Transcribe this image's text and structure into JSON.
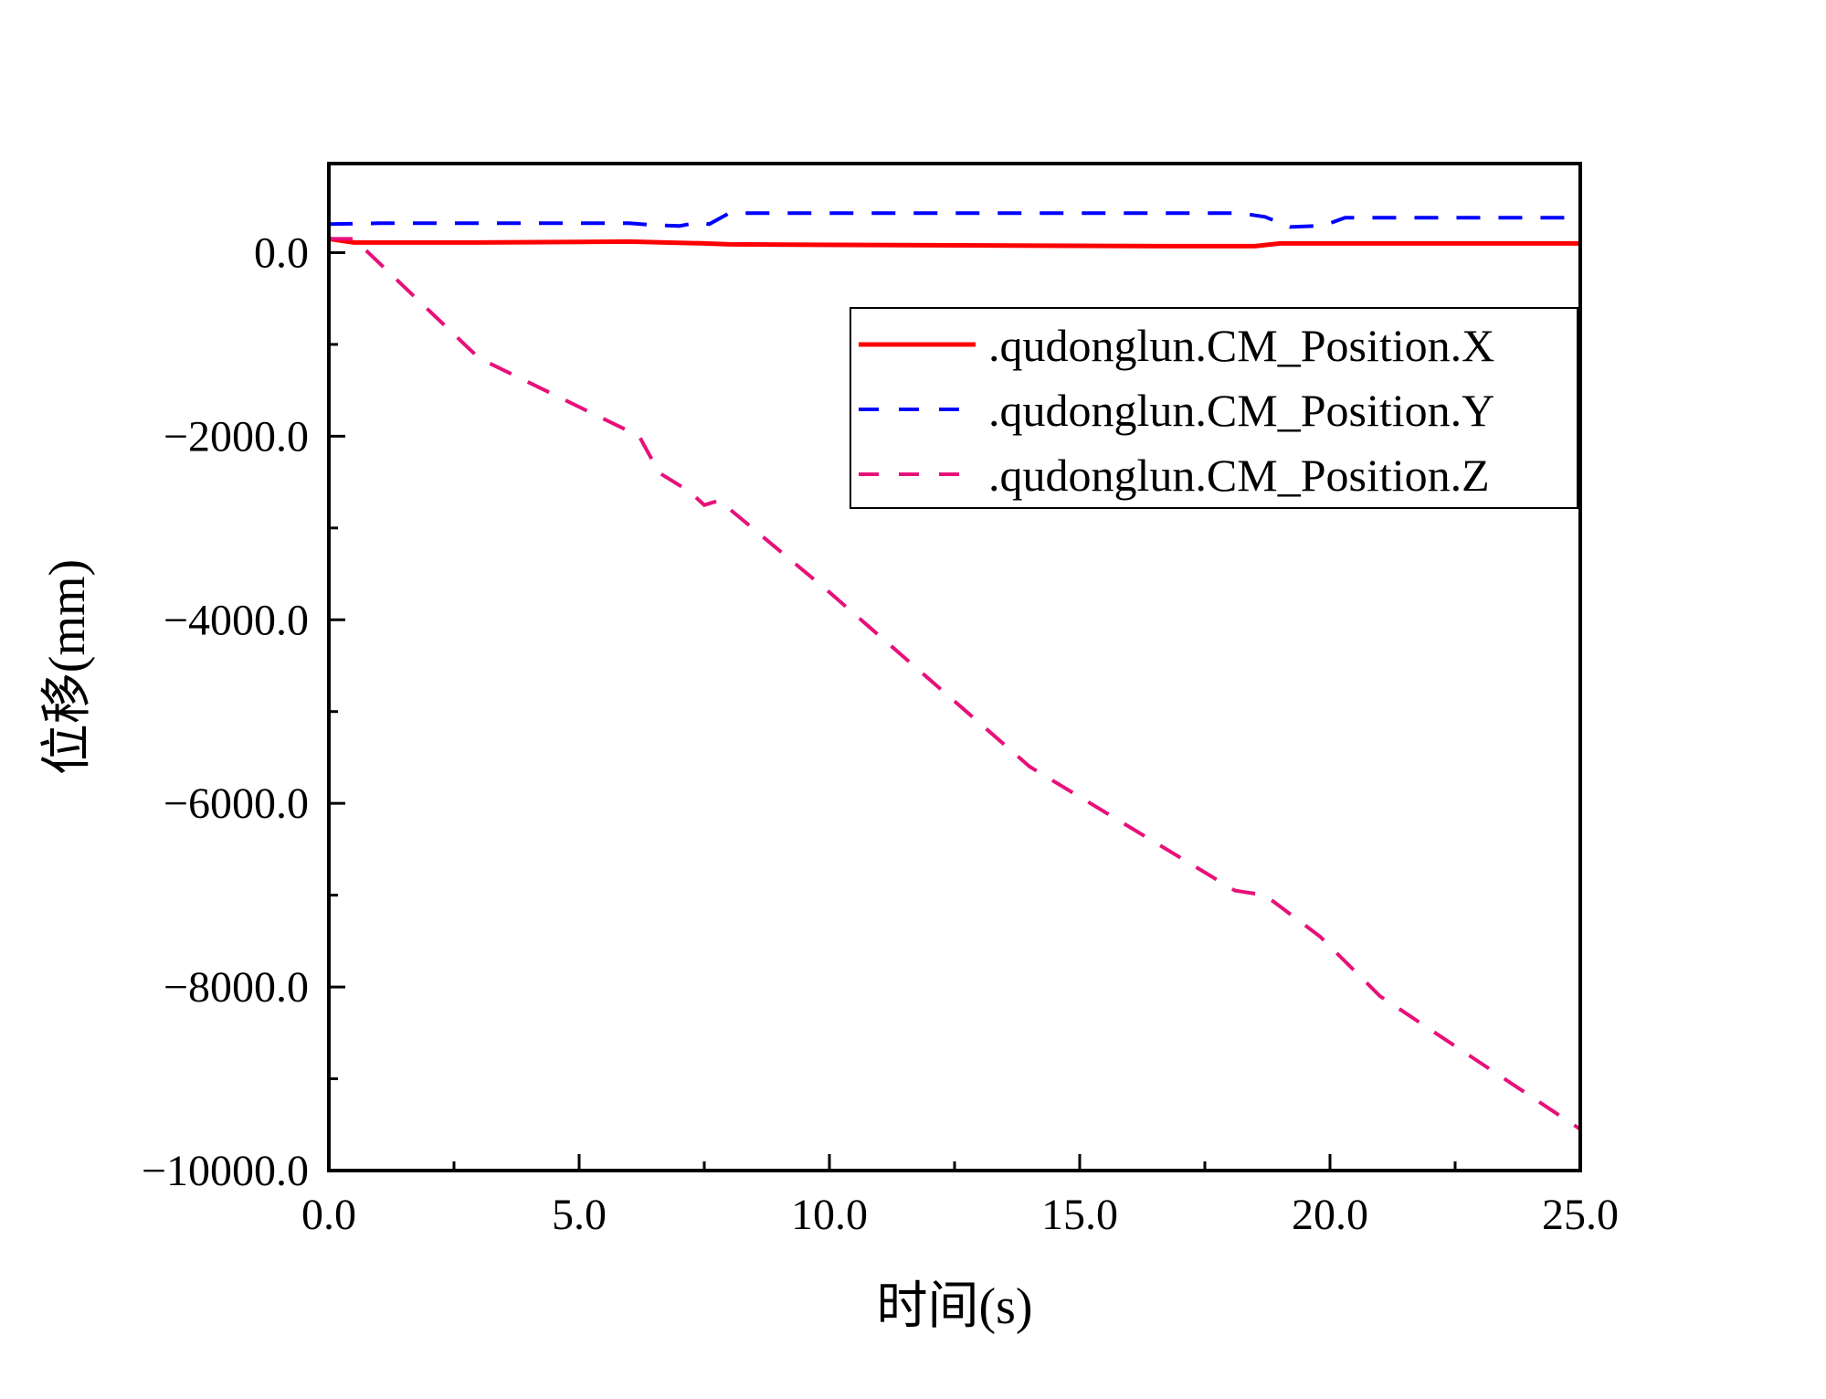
{
  "chart_data": {
    "type": "line",
    "title": "",
    "xlabel": "时间(s)",
    "ylabel": "位移(mm)",
    "xlim": [
      0,
      25
    ],
    "ylim": [
      -10000,
      970
    ],
    "xticks": [
      0,
      5,
      10,
      15,
      20,
      25
    ],
    "xtick_labels": [
      "0.0",
      "5.0",
      "10.0",
      "15.0",
      "20.0",
      "25.0"
    ],
    "yticks": [
      0,
      -2000,
      -4000,
      -6000,
      -8000,
      -10000
    ],
    "ytick_labels": [
      "0.0",
      "−2000.0",
      "−4000.0",
      "−6000.0",
      "−8000.0",
      "−10000.0"
    ],
    "grid": false,
    "legend_position": "top-right",
    "series": [
      {
        "name": ".qudonglun.CM_Position.X",
        "color": "#ff0000",
        "style": "solid",
        "x": [
          0,
          0.5,
          3,
          6,
          7.5,
          8,
          12,
          17,
          18.5,
          19,
          25
        ],
        "y": [
          150,
          110,
          110,
          120,
          100,
          90,
          80,
          70,
          70,
          100,
          100
        ]
      },
      {
        "name": ".qudonglun.CM_Position.Y",
        "color": "#0000ff",
        "style": "dashed",
        "x": [
          0,
          1,
          6,
          6.5,
          7,
          7.4,
          7.6,
          8,
          12,
          18.2,
          18.7,
          19.2,
          19.7,
          20,
          20.3,
          25
        ],
        "y": [
          310,
          320,
          320,
          300,
          290,
          330,
          310,
          430,
          430,
          430,
          390,
          280,
          290,
          320,
          380,
          380
        ]
      },
      {
        "name": ".qudonglun.CM_Position.Z",
        "color": "#e8107a",
        "style": "dashed",
        "x": [
          0,
          0.5,
          3,
          6.2,
          6.6,
          7.2,
          7.5,
          7.8,
          10,
          14,
          18.1,
          18.7,
          19.8,
          21,
          25
        ],
        "y": [
          150,
          150,
          -1150,
          -2000,
          -2400,
          -2600,
          -2750,
          -2700,
          -3700,
          -5600,
          -6950,
          -7000,
          -7450,
          -8100,
          -9550
        ]
      }
    ]
  }
}
